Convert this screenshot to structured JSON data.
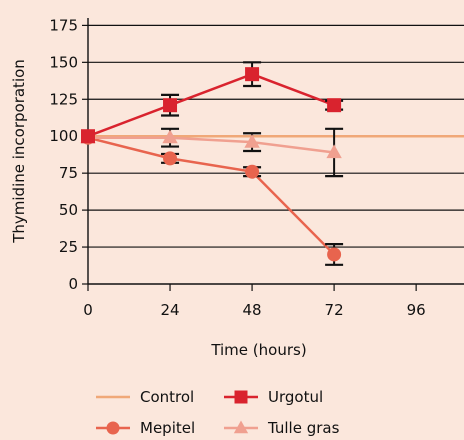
{
  "chart_data": {
    "type": "line",
    "xlabel": "Time (hours)",
    "ylabel": "Thymidine incorporation",
    "x_ticks": [
      0,
      24,
      48,
      72,
      96
    ],
    "y_ticks": [
      0,
      25,
      50,
      75,
      100,
      125,
      150,
      175
    ],
    "xlim": [
      0,
      110
    ],
    "ylim": [
      0,
      180
    ],
    "grid": "horizontal",
    "legend_position": "bottom",
    "series": [
      {
        "name": "Control",
        "marker": "none",
        "color": "#f0a878",
        "points": [
          {
            "x": 0,
            "y": 100
          },
          {
            "x": 110,
            "y": 100
          }
        ]
      },
      {
        "name": "Urgotul",
        "marker": "square",
        "color": "#d9232e",
        "points": [
          {
            "x": 0,
            "y": 100,
            "err": 0
          },
          {
            "x": 24,
            "y": 121,
            "err": 7
          },
          {
            "x": 48,
            "y": 142,
            "err": 8
          },
          {
            "x": 72,
            "y": 121,
            "err": 3
          }
        ]
      },
      {
        "name": "Mepitel",
        "marker": "circle",
        "color": "#e8644e",
        "points": [
          {
            "x": 0,
            "y": 99,
            "err": 0
          },
          {
            "x": 24,
            "y": 85,
            "err": 3
          },
          {
            "x": 48,
            "y": 76,
            "err": 3
          },
          {
            "x": 72,
            "y": 20,
            "err": 7
          }
        ]
      },
      {
        "name": "Tulle gras",
        "marker": "triangle",
        "color": "#f0a090",
        "points": [
          {
            "x": 0,
            "y": 99,
            "err": 0
          },
          {
            "x": 24,
            "y": 99,
            "err": 6
          },
          {
            "x": 48,
            "y": 96,
            "err": 6
          },
          {
            "x": 72,
            "y": 89,
            "err": 16
          }
        ]
      }
    ]
  }
}
